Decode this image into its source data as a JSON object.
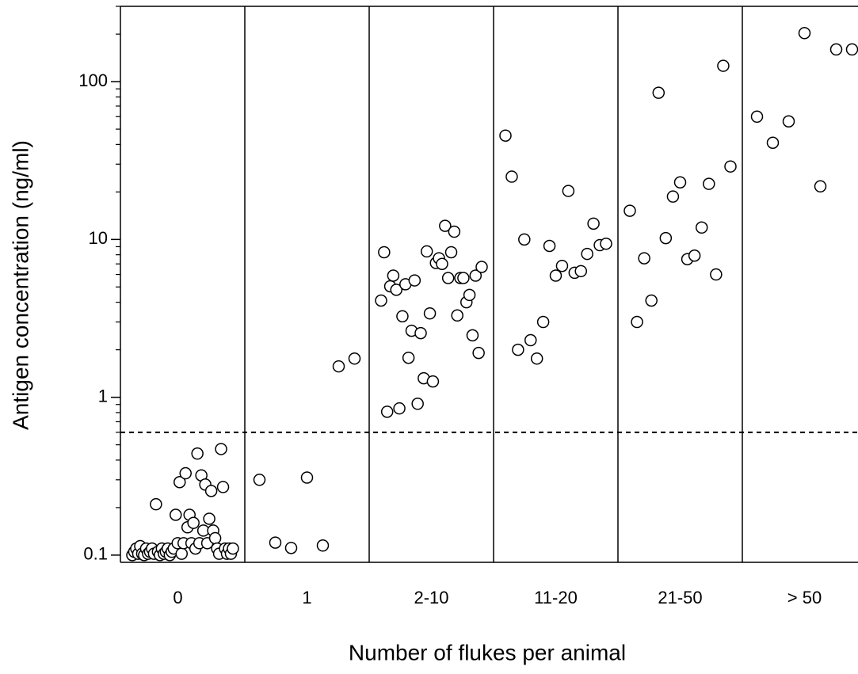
{
  "chart_data": {
    "type": "scatter",
    "x_label": "Number of flukes per animal",
    "y_label": "Antigen concentration (ng/ml)",
    "log_y": true,
    "categories": [
      "0",
      "1",
      "2-10",
      "11-20",
      "21-50",
      "> 50"
    ],
    "values": [
      [
        0.1,
        0.105,
        0.11,
        0.102,
        0.114,
        0.102,
        0.1,
        0.11,
        0.102,
        0.105,
        0.11,
        0.102,
        0.21,
        0.105,
        0.1,
        0.11,
        0.102,
        0.105,
        0.11,
        0.1,
        0.105,
        0.11,
        0.18,
        0.119,
        0.29,
        0.102,
        0.119,
        0.33,
        0.15,
        0.18,
        0.119,
        0.16,
        0.11,
        0.44,
        0.119,
        0.32,
        0.143,
        0.28,
        0.119,
        0.17,
        0.255,
        0.143,
        0.128,
        0.11,
        0.102,
        0.47,
        0.27,
        0.11,
        0.102,
        0.11,
        0.102,
        0.11
      ],
      [
        0.3,
        0.12,
        0.111,
        0.31,
        0.115,
        1.57,
        1.76
      ],
      [
        4.1,
        8.3,
        0.81,
        5.05,
        5.9,
        4.8,
        0.85,
        3.26,
        5.2,
        1.78,
        2.64,
        5.5,
        0.91,
        2.55,
        1.32,
        8.4,
        3.4,
        1.26,
        7.1,
        7.6,
        7.0,
        12.2,
        5.7,
        8.3,
        11.2,
        3.3,
        5.7,
        5.7,
        4.0,
        4.45,
        2.47,
        5.9,
        1.91,
        6.7
      ],
      [
        45.5,
        25,
        2.0,
        10,
        2.3,
        1.76,
        3.0,
        9.1,
        5.9,
        6.8,
        20.3,
        6.15,
        6.3,
        8.1,
        12.6,
        9.2,
        9.4
      ],
      [
        15.2,
        3.0,
        7.6,
        4.1,
        85,
        10.2,
        18.7,
        23,
        7.5,
        7.9,
        11.9,
        22.5,
        6.0,
        126,
        29
      ],
      [
        60,
        41,
        56,
        203,
        21.7,
        160,
        160
      ]
    ],
    "threshold": 0.6,
    "ylim": [
      0.09,
      300
    ],
    "yticks": [
      0.1,
      1,
      10,
      100
    ],
    "minor_yticks": [
      0.2,
      0.3,
      0.4,
      0.5,
      0.6,
      0.7,
      0.8,
      0.9,
      2,
      3,
      4,
      5,
      6,
      7,
      8,
      9,
      20,
      30,
      40,
      50,
      60,
      70,
      80,
      90,
      200,
      300
    ],
    "color": "#000000"
  }
}
